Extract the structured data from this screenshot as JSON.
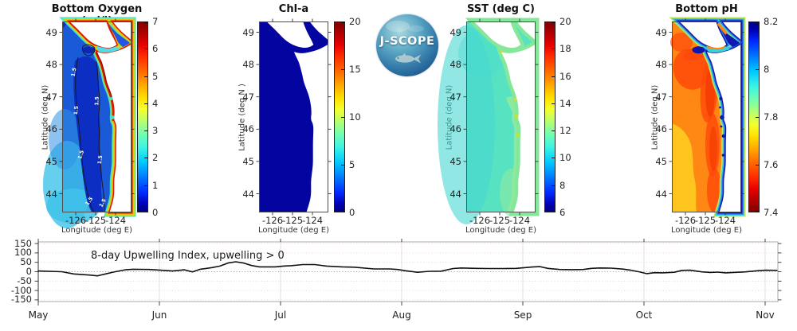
{
  "panels": [
    {
      "id": "bottom-oxygen",
      "title": "Bottom Oxygen (ml/l)",
      "ylabel": "Latitude (deg N)",
      "xlabel": "Longitude (deg E)",
      "lat_ticks": [
        "49",
        "48",
        "47",
        "46",
        "45",
        "44"
      ],
      "lon_ticks": [
        "-126",
        "-125",
        "-124"
      ],
      "contour_label": "1.5",
      "colorbar": {
        "labels": [
          "7",
          "6",
          "5",
          "4",
          "3",
          "2",
          "1",
          "0"
        ],
        "orientation": "max-top"
      },
      "colors": {
        "base": "#1a5ad8",
        "deep": "#0c2ec2",
        "deep2": "#0a28b4",
        "shelf_light": "#41c3ea",
        "shelf_mid": "#2f92e4",
        "band_cyan": "#49e0c8",
        "band_green": "#b4e428",
        "band_yellow": "#ffb400",
        "band_red": "#d71a00",
        "band_red_dark": "#8e0e00",
        "strait": "#52dce8",
        "channel": "#2255e0",
        "estuary": "#49e0c8",
        "contour": "#1a1a1a",
        "land": "#ffffff"
      }
    },
    {
      "id": "chl-a",
      "title": "Chl-a",
      "ylabel": "Latitude (deg N )",
      "xlabel": "Longitude (deg E)",
      "lat_ticks": [
        "49",
        "48",
        "47",
        "46",
        "45",
        "44"
      ],
      "lon_ticks": [
        "-126",
        "-125",
        "-124"
      ],
      "colorbar": {
        "labels": [
          "20",
          "15",
          "10",
          "5",
          "0"
        ],
        "orientation": "max-top"
      },
      "colors": {
        "base": "#0404a0",
        "land": "#ffffff"
      }
    },
    {
      "id": "sst",
      "title": "SST (deg C)",
      "ylabel": "Latitude (deg N)",
      "xlabel": "Longitude (deg E)",
      "lat_ticks": [
        "49",
        "48",
        "47",
        "46",
        "45",
        "44"
      ],
      "lon_ticks": [
        "-126",
        "-125",
        "-124"
      ],
      "colorbar": {
        "labels": [
          "20",
          "18",
          "16",
          "14",
          "12",
          "10",
          "8",
          "6"
        ],
        "orientation": "max-top"
      },
      "colors": {
        "base": "#57e3c2",
        "offshore": "#46d7d2",
        "coast_green": "#84e79a",
        "coast_green2": "#8ce9a0",
        "estuary": "#cbe032",
        "land": "#ffffff"
      }
    },
    {
      "id": "bottom-ph",
      "title": "Bottom pH",
      "ylabel": "Latitude (deg N)",
      "xlabel": "Longitude (deg E)",
      "lat_ticks": [
        "49",
        "48",
        "47",
        "46",
        "45",
        "44"
      ],
      "lon_ticks": [
        "-126",
        "-125",
        "-124"
      ],
      "colorbar": {
        "labels": [
          "8.2",
          "8",
          "7.8",
          "7.6",
          "7.4"
        ],
        "orientation": "max-bottom"
      },
      "colors": {
        "base": "#ff8714",
        "yellow": "#ffc41e",
        "red": "#ff4a0a",
        "red_dark": "#f23800",
        "band_green": "#bfe75a",
        "band_cyan": "#38d2da",
        "band_blue": "#2a68ee",
        "band_navy": "#10149f",
        "navy": "#0f17b0",
        "land": "#ffffff"
      }
    }
  ],
  "logo": {
    "text": "J-SCOPE"
  },
  "timeseries": {
    "annotation": "8-day Upwelling Index, upwelling > 0",
    "y_tick_labels": [
      "150",
      "100",
      "50",
      "0",
      "-50",
      "-100",
      "-150"
    ],
    "month_labels": [
      "May",
      "Jun",
      "Jul",
      "Aug",
      "Sep",
      "Oct",
      "Nov"
    ]
  },
  "chart_data": [
    {
      "type": "heatmap",
      "title": "Bottom Oxygen (ml/l)",
      "xlabel": "Longitude (deg E)",
      "ylabel": "Latitude (deg N)",
      "x_ticks": [
        -126,
        -125,
        -124
      ],
      "y_ticks": [
        49,
        48,
        47,
        46,
        45,
        44
      ],
      "colormap": "jet",
      "colorbar_range": [
        0,
        7
      ],
      "colorbar_ticks": [
        0,
        1,
        2,
        3,
        4,
        5,
        6,
        7
      ],
      "contour_levels": [
        1.5
      ],
      "summary": "Shelf bottom oxygen mostly 0.5-2 ml/l (blue) with hypoxic band inside black 1.5 ml/l contours; high values (5-7, red) along the coastline, Strait of Juan de Fuca and Strait of Georgia; cyan 2-3 offshore to the southwest."
    },
    {
      "type": "heatmap",
      "title": "Chl-a",
      "xlabel": "Longitude (deg E)",
      "ylabel": "Latitude (deg N )",
      "x_ticks": [
        -126,
        -125,
        -124
      ],
      "y_ticks": [
        49,
        48,
        47,
        46,
        45,
        44
      ],
      "colormap": "jet",
      "colorbar_range": [
        0,
        20
      ],
      "colorbar_ticks": [
        0,
        5,
        10,
        15,
        20
      ],
      "summary": "Uniform near-zero surface chlorophyll (~0 mg/m3, dark navy) over the whole domain."
    },
    {
      "type": "heatmap",
      "title": "SST (deg C)",
      "xlabel": "Longitude (deg E)",
      "ylabel": "Latitude (deg N)",
      "x_ticks": [
        -126,
        -125,
        -124
      ],
      "y_ticks": [
        49,
        48,
        47,
        46,
        45,
        44
      ],
      "colormap": "jet",
      "colorbar_range": [
        6,
        20
      ],
      "colorbar_ticks": [
        6,
        8,
        10,
        12,
        14,
        16,
        18,
        20
      ],
      "summary": "SST mostly 11-13 C (cyan-green), slightly greener (~13) nearshore in the south, small warmer (~14-15) patches in estuaries."
    },
    {
      "type": "heatmap",
      "title": "Bottom pH",
      "xlabel": "Longitude (deg E)",
      "ylabel": "Latitude (deg N)",
      "x_ticks": [
        -126,
        -125,
        -124
      ],
      "y_ticks": [
        49,
        48,
        47,
        46,
        45,
        44
      ],
      "colormap": "jet-reversed",
      "colorbar_range": [
        7.4,
        8.2
      ],
      "colorbar_ticks": [
        7.4,
        7.6,
        7.8,
        8,
        8.2
      ],
      "summary": "Offshore bottom pH ~7.5-7.65 (orange/red), ~7.65-7.7 (yellow) far offshore in the south, rising to 8.0-8.2 (blue/navy) in a narrow band along the coast, in estuaries and in the straits."
    },
    {
      "type": "line",
      "title": "8-day Upwelling Index, upwelling > 0",
      "x_unit": "days since May 1",
      "x_tick_labels": [
        "May",
        "Jun",
        "Jul",
        "Aug",
        "Sep",
        "Oct",
        "Nov"
      ],
      "x_month_start_days": [
        0,
        31,
        61,
        92,
        123,
        153,
        184
      ],
      "y_ticks": [
        150,
        100,
        50,
        0,
        -50,
        -100,
        -150
      ],
      "ylim": [
        -185,
        160
      ],
      "x": [
        0,
        6,
        9,
        13,
        15,
        17,
        19,
        22,
        24,
        28,
        31,
        34,
        37,
        39,
        41,
        44,
        46,
        48,
        50,
        52,
        54,
        56,
        60,
        62,
        64,
        67,
        70,
        73,
        77,
        80,
        85,
        89,
        91,
        93,
        96,
        99,
        102,
        105,
        107,
        111,
        114,
        118,
        121,
        125,
        127,
        129,
        132,
        135,
        138,
        140,
        142,
        145,
        148,
        150,
        152,
        154,
        156,
        158,
        161,
        163,
        165,
        168,
        170,
        172,
        174,
        177,
        179,
        182,
        184,
        187
      ],
      "y": [
        4,
        0,
        -12,
        -18,
        -22,
        -12,
        -2,
        10,
        13,
        12,
        8,
        4,
        10,
        -1,
        13,
        22,
        30,
        46,
        53,
        46,
        33,
        26,
        26,
        30,
        32,
        38,
        38,
        30,
        26,
        24,
        15,
        15,
        12,
        5,
        -3,
        2,
        3,
        17,
        20,
        18,
        17,
        17,
        18,
        25,
        27,
        18,
        12,
        11,
        12,
        18,
        20,
        19,
        14,
        8,
        0,
        -10,
        -5,
        -6,
        -3,
        7,
        8,
        -1,
        -4,
        -2,
        -6,
        -3,
        -1,
        5,
        8,
        7
      ]
    }
  ]
}
